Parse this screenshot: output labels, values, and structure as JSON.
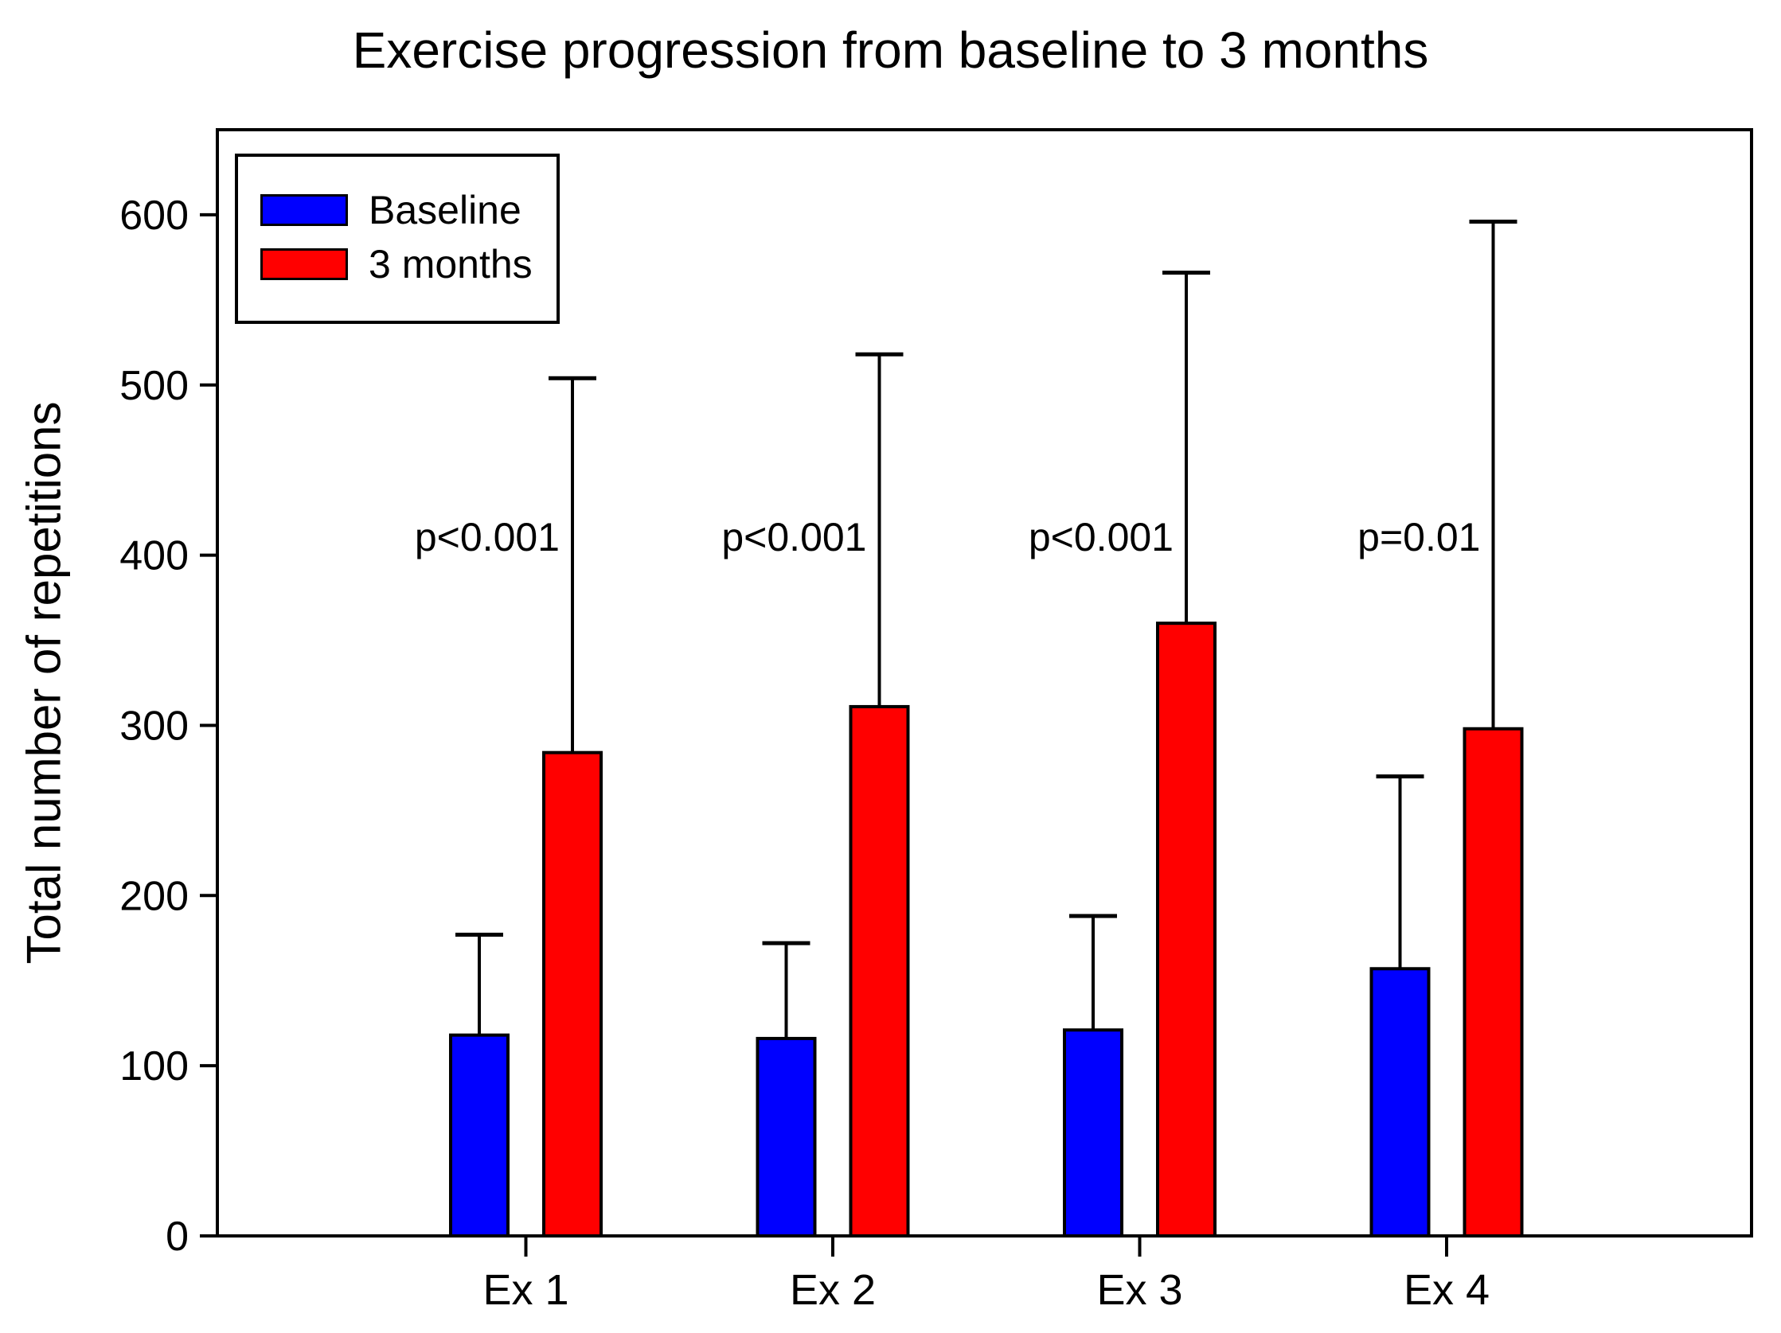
{
  "chart_data": {
    "type": "bar",
    "title": "Exercise progression from baseline to 3 months",
    "ylabel": "Total number of repetitions",
    "xlabel": "",
    "categories": [
      "Ex 1",
      "Ex 2",
      "Ex 3",
      "Ex 4"
    ],
    "series": [
      {
        "name": "Baseline",
        "color": "#0000ff",
        "values": [
          118,
          116,
          121,
          157
        ],
        "errors_up": [
          59,
          56,
          67,
          113
        ]
      },
      {
        "name": "3 months",
        "color": "#ff0000",
        "values": [
          284,
          311,
          360,
          298
        ],
        "errors_up": [
          220,
          207,
          206,
          298
        ]
      }
    ],
    "p_labels": [
      "p<0.001",
      "p<0.001",
      "p<0.001",
      "p=0.01"
    ],
    "ylim": [
      0,
      650
    ],
    "yticks": [
      0,
      100,
      200,
      300,
      400,
      500,
      600
    ],
    "grid": false,
    "legend_position": "top-left",
    "axis_color": "#000000",
    "text_color": "#000000"
  }
}
